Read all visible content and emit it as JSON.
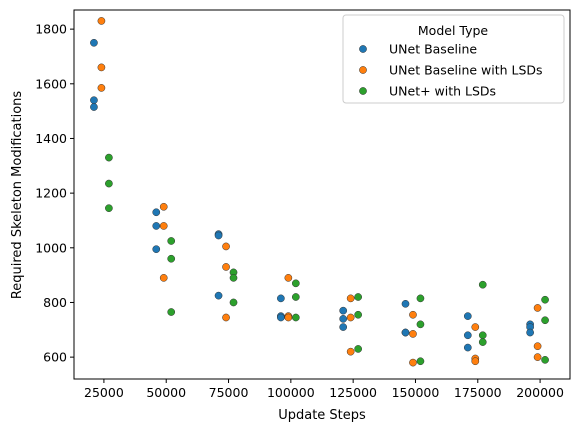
{
  "chart_data": {
    "type": "scatter",
    "xlabel": "Update Steps",
    "ylabel": "Required Skeleton Modifications",
    "xlim": [
      13000,
      212000
    ],
    "ylim": [
      520,
      1870
    ],
    "x_ticks": [
      25000,
      50000,
      75000,
      100000,
      125000,
      150000,
      175000,
      200000
    ],
    "x_tick_labels": [
      "25000",
      "50000",
      "75000",
      "100000",
      "125000",
      "150000",
      "175000",
      "200000"
    ],
    "y_ticks": [
      600,
      800,
      1000,
      1200,
      1400,
      1600,
      1800
    ],
    "y_tick_labels": [
      "600",
      "800",
      "1000",
      "1200",
      "1400",
      "1600",
      "1800"
    ],
    "grid": false,
    "legend": {
      "title": "Model Type",
      "placement": "top-right"
    },
    "series": [
      {
        "name": "UNet Baseline",
        "color": "#1f77b4",
        "points": [
          [
            21000,
            1750
          ],
          [
            21000,
            1540
          ],
          [
            21000,
            1515
          ],
          [
            46000,
            1130
          ],
          [
            46000,
            1080
          ],
          [
            46000,
            995
          ],
          [
            71000,
            1050
          ],
          [
            71000,
            1045
          ],
          [
            71000,
            825
          ],
          [
            96000,
            815
          ],
          [
            96000,
            750
          ],
          [
            96000,
            745
          ],
          [
            121000,
            770
          ],
          [
            121000,
            740
          ],
          [
            121000,
            710
          ],
          [
            146000,
            795
          ],
          [
            146000,
            690
          ],
          [
            146000,
            690
          ],
          [
            171000,
            750
          ],
          [
            171000,
            680
          ],
          [
            171000,
            635
          ],
          [
            196000,
            720
          ],
          [
            196000,
            710
          ],
          [
            196000,
            690
          ]
        ]
      },
      {
        "name": "UNet Baseline with LSDs",
        "color": "#ff7f0e",
        "points": [
          [
            24000,
            1830
          ],
          [
            24000,
            1660
          ],
          [
            24000,
            1585
          ],
          [
            49000,
            1150
          ],
          [
            49000,
            1080
          ],
          [
            49000,
            890
          ],
          [
            74000,
            1005
          ],
          [
            74000,
            930
          ],
          [
            74000,
            745
          ],
          [
            99000,
            890
          ],
          [
            99000,
            750
          ],
          [
            99000,
            745
          ],
          [
            124000,
            815
          ],
          [
            124000,
            745
          ],
          [
            124000,
            620
          ],
          [
            149000,
            755
          ],
          [
            149000,
            685
          ],
          [
            149000,
            580
          ],
          [
            174000,
            710
          ],
          [
            174000,
            595
          ],
          [
            174000,
            585
          ],
          [
            199000,
            780
          ],
          [
            199000,
            640
          ],
          [
            199000,
            600
          ]
        ]
      },
      {
        "name": "UNet+ with LSDs",
        "color": "#2ca02c",
        "points": [
          [
            27000,
            1330
          ],
          [
            27000,
            1235
          ],
          [
            27000,
            1145
          ],
          [
            52000,
            1025
          ],
          [
            52000,
            960
          ],
          [
            52000,
            765
          ],
          [
            77000,
            910
          ],
          [
            77000,
            890
          ],
          [
            77000,
            800
          ],
          [
            102000,
            870
          ],
          [
            102000,
            820
          ],
          [
            102000,
            745
          ],
          [
            127000,
            820
          ],
          [
            127000,
            755
          ],
          [
            127000,
            630
          ],
          [
            152000,
            815
          ],
          [
            152000,
            720
          ],
          [
            152000,
            585
          ],
          [
            177000,
            865
          ],
          [
            177000,
            680
          ],
          [
            177000,
            655
          ],
          [
            202000,
            810
          ],
          [
            202000,
            735
          ],
          [
            202000,
            590
          ]
        ]
      }
    ]
  }
}
